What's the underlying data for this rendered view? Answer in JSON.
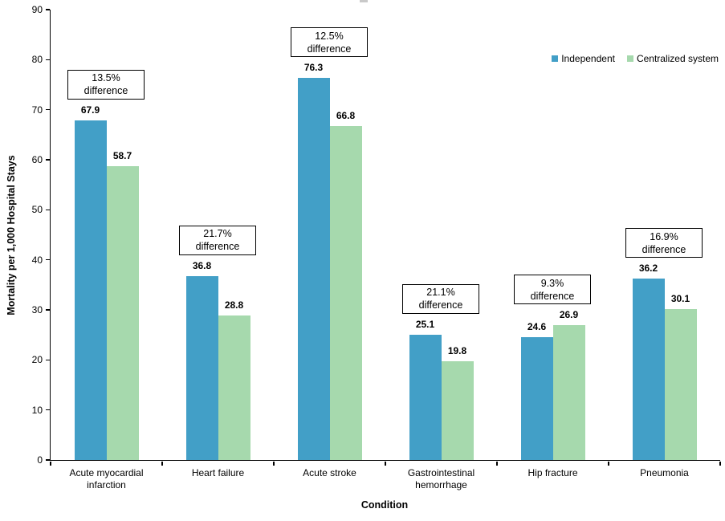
{
  "chart_data": {
    "type": "bar",
    "title": "",
    "xlabel": "Condition",
    "ylabel": "Mortality per 1,000 Hospital Stays",
    "ylim": [
      0,
      90
    ],
    "ytick_step": 10,
    "grid": false,
    "legend_position": "top-right",
    "categories": [
      "Acute myocardial infarction",
      "Heart failure",
      "Acute stroke",
      "Gastrointestinal hemorrhage",
      "Hip fracture",
      "Pneumonia"
    ],
    "series": [
      {
        "name": "Independent",
        "color": "#429FC7",
        "values": [
          67.9,
          36.8,
          76.3,
          25.1,
          24.6,
          36.2
        ]
      },
      {
        "name": "Centralized system",
        "color": "#A6D9AD",
        "values": [
          58.7,
          28.8,
          66.8,
          19.8,
          26.9,
          30.1
        ]
      }
    ],
    "difference_annotations": [
      {
        "value": "13.5%",
        "word": "difference"
      },
      {
        "value": "21.7%",
        "word": "difference"
      },
      {
        "value": "12.5%",
        "word": "difference"
      },
      {
        "value": "21.1%",
        "word": "difference"
      },
      {
        "value": "9.3%",
        "word": "difference"
      },
      {
        "value": "16.9%",
        "word": "difference"
      }
    ]
  }
}
